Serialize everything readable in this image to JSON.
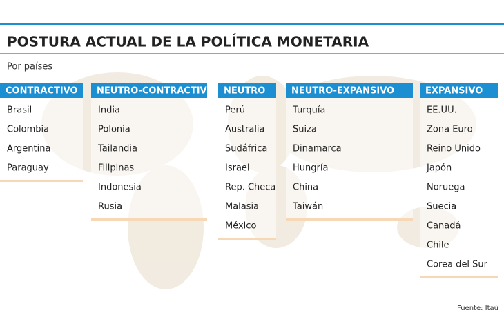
{
  "header": {
    "title": "POSTURA ACTUAL DE LA POLÍTICA MONETARIA",
    "subtitle": "Por países"
  },
  "columns": [
    {
      "heading": "CONTRACTIVO",
      "items": [
        "Brasil",
        "Colombia",
        "Argentina",
        "Paraguay"
      ]
    },
    {
      "heading": "NEUTRO-CONTRACTIVO",
      "items": [
        "India",
        "Polonia",
        "Tailandia",
        "Filipinas",
        "Indonesia",
        "Rusia"
      ]
    },
    {
      "heading": "NEUTRO",
      "items": [
        "Perú",
        "Australia",
        "Sudáfrica",
        "Israel",
        "Rep. Checa",
        "Malasia",
        "México"
      ]
    },
    {
      "heading": "NEUTRO-EXPANSIVO",
      "items": [
        "Turquía",
        "Suiza",
        "Dinamarca",
        "Hungría",
        "China",
        "Taiwán"
      ]
    },
    {
      "heading": "EXPANSIVO",
      "items": [
        "EE.UU.",
        "Zona Euro",
        "Reino Unido",
        "Japón",
        "Noruega",
        "Suecia",
        "Canadá",
        "Chile",
        "Corea del Sur"
      ]
    }
  ],
  "source": "Fuente: Itaú"
}
